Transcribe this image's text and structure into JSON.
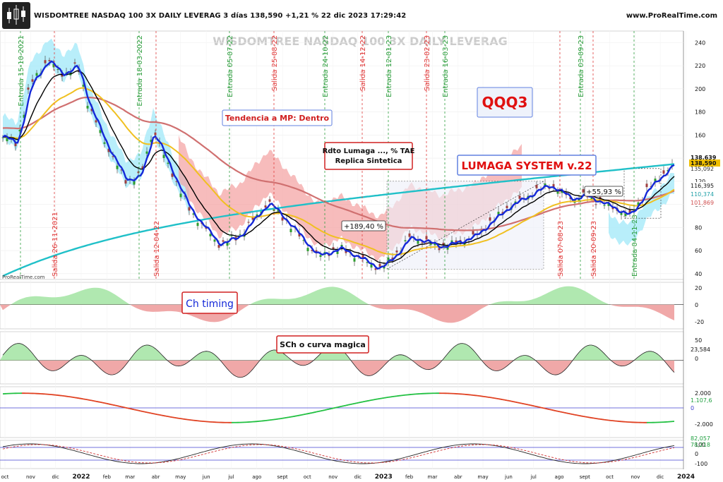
{
  "header": {
    "title": "WISDOMTREE NASDAQ 100 3X DAILY LEVERAG 3 días 138,590 +1,21 % 22 dic 2023 17:29:42",
    "site": "www.ProRealTime.com"
  },
  "annotations": {
    "watermark": "WISDOMTREE NASDAQ 100 3X DAILY LEVERAG",
    "trend": "Tendencia a MP: Dentro",
    "rdto_line1": "Rdto Lumaga ..., % TAE",
    "rdto_line2": "Replica Sintetica",
    "ticker": "QQQ3",
    "system": "LUMAGA SYSTEM v.22",
    "gain1": "+189,40 %",
    "gain2": "+55,93 %",
    "ch_timing": "Ch timing",
    "sch": "SCh o curva magica",
    "prt_mark": "ProRealTime.com"
  },
  "colors": {
    "entry": "#2e9e3e",
    "exit": "#e03c3c",
    "blue": "#1428d8",
    "black": "#000000",
    "yellow": "#f0c020",
    "red_ma": "#d07070",
    "cyan": "#20c0c8",
    "cloud_cyan": "#a0e8f8",
    "cloud_red": "#f4a0a0",
    "pos_fill": "#b0e8b0",
    "neg_fill": "#f0a8a8"
  },
  "chart_data": {
    "type": "candlestick",
    "main": {
      "ylim": [
        35,
        250
      ],
      "yticks": [
        40,
        60,
        80,
        100,
        120,
        140,
        160,
        180,
        200,
        220,
        240
      ],
      "last_price": "138,590",
      "value_labels": [
        "138,639",
        "135,092",
        "116,395",
        "110,374",
        "101,869"
      ],
      "close_approx": [
        {
          "x": "2021-10-01",
          "y": 158
        },
        {
          "x": "2021-10-15",
          "y": 152
        },
        {
          "x": "2021-11-01",
          "y": 205
        },
        {
          "x": "2021-11-22",
          "y": 225
        },
        {
          "x": "2021-12-10",
          "y": 212
        },
        {
          "x": "2021-12-28",
          "y": 220
        },
        {
          "x": "2022-01-10",
          "y": 185
        },
        {
          "x": "2022-02-01",
          "y": 150
        },
        {
          "x": "2022-02-24",
          "y": 120
        },
        {
          "x": "2022-03-14",
          "y": 125
        },
        {
          "x": "2022-03-29",
          "y": 165
        },
        {
          "x": "2022-04-12",
          "y": 140
        },
        {
          "x": "2022-05-12",
          "y": 95
        },
        {
          "x": "2022-06-16",
          "y": 65
        },
        {
          "x": "2022-07-10",
          "y": 72
        },
        {
          "x": "2022-08-15",
          "y": 102
        },
        {
          "x": "2022-09-10",
          "y": 82
        },
        {
          "x": "2022-10-13",
          "y": 55
        },
        {
          "x": "2022-11-10",
          "y": 62
        },
        {
          "x": "2022-12-28",
          "y": 44
        },
        {
          "x": "2023-01-20",
          "y": 60
        },
        {
          "x": "2023-02-02",
          "y": 72
        },
        {
          "x": "2023-03-13",
          "y": 63
        },
        {
          "x": "2023-04-20",
          "y": 72
        },
        {
          "x": "2023-06-01",
          "y": 98
        },
        {
          "x": "2023-07-19",
          "y": 117
        },
        {
          "x": "2023-08-18",
          "y": 104
        },
        {
          "x": "2023-09-01",
          "y": 108
        },
        {
          "x": "2023-10-26",
          "y": 90
        },
        {
          "x": "2023-11-14",
          "y": 112
        },
        {
          "x": "2023-12-22",
          "y": 138.59
        }
      ],
      "signals": [
        {
          "label": "Entrada 15-10-2021",
          "type": "entry"
        },
        {
          "label": "Salida 26-11-2021",
          "type": "exit"
        },
        {
          "label": "Entrada 18-03-2022",
          "type": "entry"
        },
        {
          "label": "Salida 12-04-22",
          "type": "exit"
        },
        {
          "label": "Entrada 05-07-22",
          "type": "entry"
        },
        {
          "label": "Salida 25-08-22",
          "type": "exit"
        },
        {
          "label": "Entrada 24-10-22",
          "type": "entry"
        },
        {
          "label": "Salida 14-12-22",
          "type": "exit"
        },
        {
          "label": "Entrada 12-01-23",
          "type": "entry"
        },
        {
          "label": "Salida 23-02-23",
          "type": "exit"
        },
        {
          "label": "Entrada 16-03-23",
          "type": "entry"
        },
        {
          "label": "Salida 07-08-23",
          "type": "exit"
        },
        {
          "label": "Entrada 03-09-23",
          "type": "entry"
        },
        {
          "label": "Salida 20-09-23",
          "type": "exit"
        },
        {
          "label": "Entrada 04-11-23",
          "type": "entry"
        }
      ]
    },
    "panels": [
      {
        "name": "Ch timing",
        "yticks": [
          "20",
          "0",
          "-20"
        ]
      },
      {
        "name": "SCh o curva magica",
        "yticks": [
          "50",
          "0"
        ],
        "value_label": "23,584",
        "last_label": "0"
      },
      {
        "name": "",
        "yticks": [
          "2.000",
          "0",
          "-2.000"
        ],
        "value_label": "1.107,6",
        "last_label": "0"
      },
      {
        "name": "",
        "yticks": [
          "100",
          "0"
        ],
        "value_labels": [
          "82,057",
          "78,218"
        ]
      }
    ],
    "x_labels": [
      {
        "label": "oct",
        "x": "2021-10"
      },
      {
        "label": "nov",
        "x": "2021-11"
      },
      {
        "label": "dic",
        "x": "2021-12"
      },
      {
        "label": "2022",
        "x": "2022-01"
      },
      {
        "label": "feb",
        "x": "2022-02"
      },
      {
        "label": "mar",
        "x": "2022-03"
      },
      {
        "label": "abr",
        "x": "2022-04"
      },
      {
        "label": "may",
        "x": "2022-05"
      },
      {
        "label": "jun",
        "x": "2022-06"
      },
      {
        "label": "jul",
        "x": "2022-07"
      },
      {
        "label": "ago",
        "x": "2022-08"
      },
      {
        "label": "sept",
        "x": "2022-09"
      },
      {
        "label": "oct",
        "x": "2022-10"
      },
      {
        "label": "nov",
        "x": "2022-11"
      },
      {
        "label": "dic",
        "x": "2022-12"
      },
      {
        "label": "2023",
        "x": "2023-01"
      },
      {
        "label": "feb",
        "x": "2023-02"
      },
      {
        "label": "mar",
        "x": "2023-03"
      },
      {
        "label": "abr",
        "x": "2023-04"
      },
      {
        "label": "may",
        "x": "2023-05"
      },
      {
        "label": "jun",
        "x": "2023-06"
      },
      {
        "label": "jul",
        "x": "2023-07"
      },
      {
        "label": "ago",
        "x": "2023-08"
      },
      {
        "label": "sept",
        "x": "2023-09"
      },
      {
        "label": "oct",
        "x": "2023-10"
      },
      {
        "label": "nov",
        "x": "2023-11"
      },
      {
        "label": "dic",
        "x": "2023-12"
      },
      {
        "label": "2024",
        "x": "2024-01"
      }
    ]
  }
}
